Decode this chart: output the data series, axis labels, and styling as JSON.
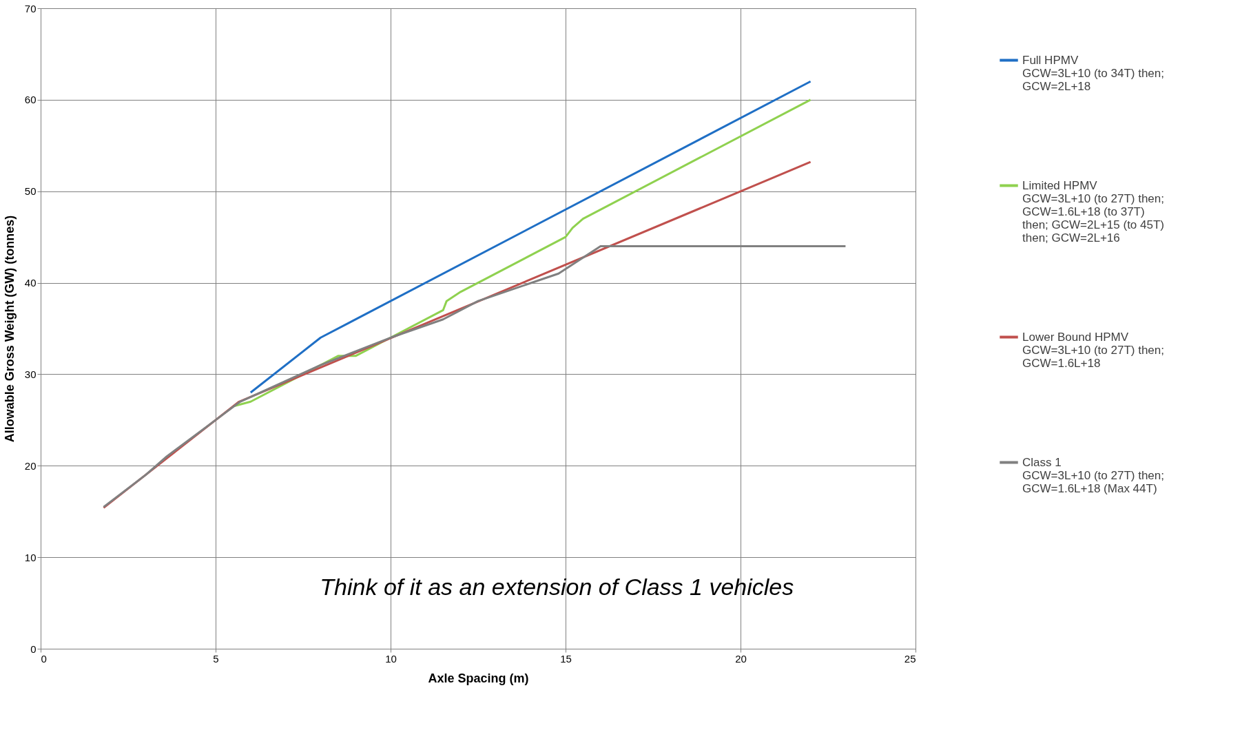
{
  "chart_data": {
    "type": "line",
    "xlabel": "Axle Spacing (m)",
    "ylabel": "Allowable Gross Weight (GW) (tonnes)",
    "xlim": [
      0,
      25
    ],
    "xticks": [
      0,
      5,
      10,
      15,
      20,
      25
    ],
    "ylim": [
      0,
      70
    ],
    "yticks": [
      0,
      10,
      20,
      30,
      40,
      50,
      60,
      70
    ],
    "grid": true,
    "legend": "right",
    "marker": "none",
    "line_style": "solid",
    "annotations": [
      "Think of it as an extension of Class 1 vehicles"
    ],
    "series": [
      {
        "name": "Full HPMV\nGCW=3L+10 (to 34T) then;\nGCW=2L+18",
        "color": "#1f6fc5",
        "x": [
          6,
          8,
          22
        ],
        "values": [
          28,
          34,
          62
        ]
      },
      {
        "name": "Limited HPMV\nGCW=3L+10 (to 27T) then;\nGCW=1.6L+18 (to 37T)\nthen; GCW=2L+15 (to 45T)\nthen; GCW=2L+16",
        "color": "#8fd14f",
        "x": [
          5.5,
          6,
          8.5,
          9,
          10,
          11.5,
          11.6,
          12,
          15,
          15.2,
          15.5,
          22
        ],
        "values": [
          26.5,
          27,
          32,
          32,
          34,
          37,
          38,
          39,
          45,
          46,
          47,
          60
        ]
      },
      {
        "name": "Lower Bound HPMV\nGCW=3L+10 (to 27T) then;\nGCW=1.6L+18",
        "color": "#c0504d",
        "x": [
          1.8,
          5.67,
          22
        ],
        "values": [
          15.4,
          27,
          53.2
        ]
      },
      {
        "name": "Class 1\nGCW=3L+10 (to 27T) then;\nGCW=1.6L+18 (Max 44T)",
        "color": "#808080",
        "x": [
          1.8,
          3,
          3.6,
          4.3,
          5,
          5.7,
          8,
          10,
          11.5,
          12.5,
          14.8,
          16,
          23
        ],
        "values": [
          15.5,
          19,
          21,
          23,
          25,
          27,
          31,
          34,
          36,
          38,
          41,
          44,
          44
        ]
      }
    ]
  }
}
